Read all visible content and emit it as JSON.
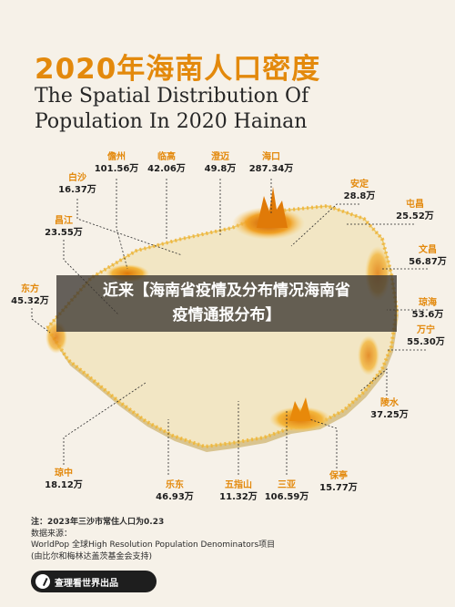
{
  "title": {
    "cn": "2020年海南人口密度",
    "en_line1": "The Spatial Distribution Of",
    "en_line2": "Population In 2020 Hainan"
  },
  "cities": [
    {
      "name": "儋州",
      "value": "101.56万"
    },
    {
      "name": "临高",
      "value": "42.06万"
    },
    {
      "name": "澄迈",
      "value": "49.8万"
    },
    {
      "name": "海口",
      "value": "287.34万"
    },
    {
      "name": "白沙",
      "value": "16.37万"
    },
    {
      "name": "安定",
      "value": "28.8万"
    },
    {
      "name": "屯昌",
      "value": "25.52万"
    },
    {
      "name": "昌江",
      "value": "23.55万"
    },
    {
      "name": "文昌",
      "value": "56.87万"
    },
    {
      "name": "东方",
      "value": "45.32万"
    },
    {
      "name": "琼海",
      "value": "53.6万"
    },
    {
      "name": "万宁",
      "value": "55.30万"
    },
    {
      "name": "陵水",
      "value": "37.25万"
    },
    {
      "name": "琼中",
      "value": "18.12万"
    },
    {
      "name": "乐东",
      "value": "46.93万"
    },
    {
      "name": "五指山",
      "value": "11.32万"
    },
    {
      "name": "三亚",
      "value": "106.59万"
    },
    {
      "name": "保亭",
      "value": "15.77万"
    }
  ],
  "overlay": {
    "line1": "近来【海南省疫情及分布情况海南省",
    "line2": "疫情通报分布】"
  },
  "notes": {
    "note": "注：2023年三沙市常住人口为0.23",
    "source_label": "数据来源：",
    "source_line1": "WorldPop 全球High Resolution Population Denominators项目",
    "source_line2": "(由比尔和梅林达盖茨基金会支持)"
  },
  "brand": {
    "label": "查理看世界出品"
  },
  "colors": {
    "accent": "#e3890c",
    "island": "#f2e6c4",
    "density_high": "#e8890a",
    "background": "#f6f1e8"
  }
}
